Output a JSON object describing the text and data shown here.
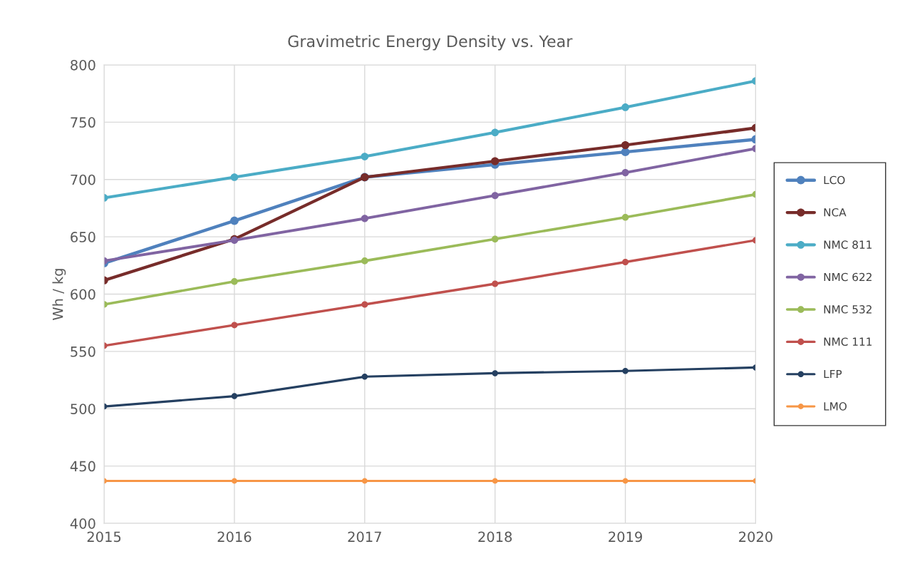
{
  "chart_data": {
    "type": "line",
    "title": "Gravimetric Energy Density vs. Year",
    "ylabel": "Wh / kg",
    "x": [
      2015,
      2016,
      2017,
      2018,
      2019,
      2020
    ],
    "series": [
      {
        "name": "LCO",
        "color": "#4f81bd",
        "values": [
          627,
          664,
          702,
          713,
          724,
          735
        ]
      },
      {
        "name": "NCA",
        "color": "#772c2a",
        "values": [
          612,
          648,
          702,
          716,
          730,
          745
        ]
      },
      {
        "name": "NMC 811",
        "color": "#4bacc6",
        "values": [
          684,
          702,
          720,
          741,
          763,
          786
        ]
      },
      {
        "name": "NMC 622",
        "color": "#8064a2",
        "values": [
          629,
          647,
          666,
          686,
          706,
          727
        ]
      },
      {
        "name": "NMC 532",
        "color": "#9bbb59",
        "values": [
          591,
          611,
          629,
          648,
          667,
          687
        ]
      },
      {
        "name": "NMC 111",
        "color": "#c0504d",
        "values": [
          555,
          573,
          591,
          609,
          628,
          647
        ]
      },
      {
        "name": "LFP",
        "color": "#254061",
        "values": [
          502,
          511,
          528,
          531,
          533,
          536
        ]
      },
      {
        "name": "LMO",
        "color": "#f79646",
        "values": [
          437,
          437,
          437,
          437,
          437,
          437
        ]
      }
    ],
    "xlim": [
      2015,
      2020
    ],
    "xticks": [
      2015,
      2016,
      2017,
      2018,
      2019,
      2020
    ],
    "ylim": [
      400,
      800
    ],
    "yticks": [
      400,
      450,
      500,
      550,
      600,
      650,
      700,
      750,
      800
    ],
    "grid": true,
    "legend": "right",
    "marker": "circle",
    "line_style": "solid"
  }
}
